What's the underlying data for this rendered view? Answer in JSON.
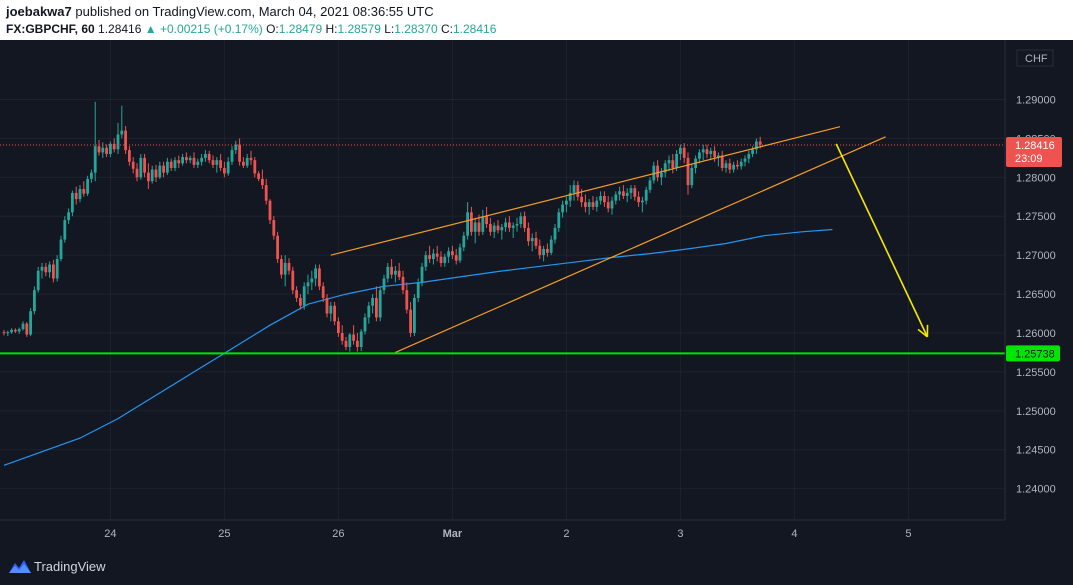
{
  "header": {
    "author": "joebakwa7",
    "published_text": "published on TradingView.com, March 04, 2021 08:36:55 UTC",
    "symbol": "FX:GBPCHF, 60",
    "last_price": "1.28416",
    "change": "+0.00215 (+0.17%)",
    "o_label": "O:",
    "o_value": "1.28479",
    "h_label": "H:",
    "h_value": "1.28579",
    "l_label": "L:",
    "l_value": "1.28370",
    "c_label": "C:",
    "c_value": "1.28416"
  },
  "footer": {
    "brand": "TradingView"
  },
  "colors": {
    "background": "#131722",
    "up": "#26a69a",
    "down": "#ef5350",
    "wedge": "#f59b23",
    "moving_average": "#2196f3",
    "support": "#00e600",
    "arrow": "#f5e800",
    "price_line": "#ef5350"
  },
  "chart_data": {
    "type": "candlestick",
    "symbol": "FX:GBPCHF",
    "interval": "60",
    "currency": "CHF",
    "ylim": [
      1.237,
      1.297
    ],
    "y_ticks": [
      "1.29000",
      "1.28500",
      "1.28000",
      "1.27500",
      "1.27000",
      "1.26500",
      "1.26000",
      "1.25500",
      "1.25000",
      "1.24500",
      "1.24000"
    ],
    "x_ticks": [
      {
        "label": "24",
        "index": 28
      },
      {
        "label": "25",
        "index": 58
      },
      {
        "label": "26",
        "index": 88
      },
      {
        "label": "Mar",
        "index": 118
      },
      {
        "label": "2",
        "index": 148
      },
      {
        "label": "3",
        "index": 178
      },
      {
        "label": "4",
        "index": 208
      },
      {
        "label": "5",
        "index": 238
      }
    ],
    "current_price": {
      "value": 1.28416,
      "label": "1.28416",
      "countdown": "23:09"
    },
    "support_level": {
      "value": 1.25738,
      "label": "1.25738"
    },
    "wedge_upper": {
      "from": [
        86,
        1.27
      ],
      "to": [
        220,
        1.2865
      ]
    },
    "wedge_lower": {
      "from": [
        103,
        1.2575
      ],
      "to": [
        232,
        1.2852
      ]
    },
    "moving_average": [
      [
        0,
        1.243
      ],
      [
        20,
        1.2465
      ],
      [
        30,
        1.249
      ],
      [
        40,
        1.252
      ],
      [
        50,
        1.255
      ],
      [
        60,
        1.258
      ],
      [
        70,
        1.261
      ],
      [
        80,
        1.2637
      ],
      [
        90,
        1.265
      ],
      [
        100,
        1.266
      ],
      [
        110,
        1.2665
      ],
      [
        120,
        1.2672
      ],
      [
        130,
        1.2679
      ],
      [
        140,
        1.2685
      ],
      [
        150,
        1.2691
      ],
      [
        160,
        1.2697
      ],
      [
        170,
        1.2702
      ],
      [
        180,
        1.2708
      ],
      [
        190,
        1.2715
      ],
      [
        200,
        1.2725
      ],
      [
        210,
        1.273
      ],
      [
        218,
        1.2733
      ]
    ],
    "projection_arrow": {
      "from": [
        219,
        1.2843
      ],
      "to": [
        243,
        1.2595
      ]
    },
    "candles": [
      [
        1.2601,
        1.2604,
        1.2597,
        1.26
      ],
      [
        1.26,
        1.2603,
        1.2596,
        1.2601
      ],
      [
        1.2601,
        1.2606,
        1.2599,
        1.2604
      ],
      [
        1.2604,
        1.2606,
        1.26,
        1.2602
      ],
      [
        1.2602,
        1.2607,
        1.2599,
        1.2605
      ],
      [
        1.2605,
        1.2615,
        1.2603,
        1.2612
      ],
      [
        1.2612,
        1.2614,
        1.2595,
        1.2598
      ],
      [
        1.2598,
        1.2632,
        1.2596,
        1.2628
      ],
      [
        1.2628,
        1.266,
        1.2624,
        1.2655
      ],
      [
        1.2655,
        1.2685,
        1.2652,
        1.268
      ],
      [
        1.268,
        1.269,
        1.267,
        1.2685
      ],
      [
        1.2685,
        1.269,
        1.2673,
        1.2678
      ],
      [
        1.2678,
        1.2692,
        1.2671,
        1.2688
      ],
      [
        1.2688,
        1.2694,
        1.2665,
        1.267
      ],
      [
        1.267,
        1.27,
        1.2666,
        1.2695
      ],
      [
        1.2695,
        1.2725,
        1.2692,
        1.272
      ],
      [
        1.272,
        1.275,
        1.2716,
        1.2745
      ],
      [
        1.2745,
        1.276,
        1.274,
        1.2755
      ],
      [
        1.2755,
        1.2783,
        1.275,
        1.278
      ],
      [
        1.278,
        1.2788,
        1.2765,
        1.2772
      ],
      [
        1.2772,
        1.279,
        1.2768,
        1.2785
      ],
      [
        1.2785,
        1.2795,
        1.2775,
        1.2779
      ],
      [
        1.2779,
        1.2802,
        1.2776,
        1.2798
      ],
      [
        1.2798,
        1.281,
        1.2793,
        1.2806
      ],
      [
        1.2806,
        1.2897,
        1.2795,
        1.284
      ],
      [
        1.284,
        1.2848,
        1.2828,
        1.2832
      ],
      [
        1.2832,
        1.2845,
        1.2825,
        1.2838
      ],
      [
        1.2838,
        1.2842,
        1.2826,
        1.283
      ],
      [
        1.283,
        1.2846,
        1.2826,
        1.2843
      ],
      [
        1.2843,
        1.285,
        1.2832,
        1.2836
      ],
      [
        1.2836,
        1.287,
        1.283,
        1.2855
      ],
      [
        1.2855,
        1.2892,
        1.285,
        1.286
      ],
      [
        1.286,
        1.2866,
        1.283,
        1.2835
      ],
      [
        1.2835,
        1.284,
        1.2815,
        1.282
      ],
      [
        1.282,
        1.2826,
        1.2805,
        1.2811
      ],
      [
        1.2811,
        1.2818,
        1.2795,
        1.28
      ],
      [
        1.28,
        1.283,
        1.2797,
        1.2825
      ],
      [
        1.2825,
        1.283,
        1.28,
        1.2806
      ],
      [
        1.2806,
        1.2818,
        1.2785,
        1.2795
      ],
      [
        1.2795,
        1.2815,
        1.2792,
        1.281
      ],
      [
        1.281,
        1.2816,
        1.2794,
        1.28
      ],
      [
        1.28,
        1.282,
        1.2798,
        1.2815
      ],
      [
        1.2815,
        1.282,
        1.28,
        1.2806
      ],
      [
        1.2806,
        1.2825,
        1.2803,
        1.282
      ],
      [
        1.282,
        1.2824,
        1.2808,
        1.2812
      ],
      [
        1.2812,
        1.2826,
        1.2808,
        1.2822
      ],
      [
        1.2822,
        1.2828,
        1.2812,
        1.2818
      ],
      [
        1.2818,
        1.283,
        1.2815,
        1.2826
      ],
      [
        1.2826,
        1.2832,
        1.2818,
        1.2822
      ],
      [
        1.2822,
        1.2828,
        1.2818,
        1.2825
      ],
      [
        1.2825,
        1.2832,
        1.2812,
        1.2816
      ],
      [
        1.2816,
        1.2824,
        1.2812,
        1.282
      ],
      [
        1.282,
        1.283,
        1.2815,
        1.2825
      ],
      [
        1.2825,
        1.2835,
        1.282,
        1.283
      ],
      [
        1.283,
        1.2834,
        1.2818,
        1.2822
      ],
      [
        1.2822,
        1.2828,
        1.2812,
        1.2816
      ],
      [
        1.2816,
        1.2826,
        1.2806,
        1.2822
      ],
      [
        1.2822,
        1.283,
        1.2808,
        1.2812
      ],
      [
        1.2812,
        1.282,
        1.28,
        1.2805
      ],
      [
        1.2805,
        1.2826,
        1.2802,
        1.282
      ],
      [
        1.282,
        1.284,
        1.2816,
        1.2835
      ],
      [
        1.2835,
        1.2847,
        1.283,
        1.2842
      ],
      [
        1.2842,
        1.285,
        1.2815,
        1.282
      ],
      [
        1.282,
        1.2826,
        1.2812,
        1.2815
      ],
      [
        1.2815,
        1.283,
        1.2812,
        1.2825
      ],
      [
        1.2825,
        1.2834,
        1.2816,
        1.2822
      ],
      [
        1.2822,
        1.2826,
        1.28,
        1.2805
      ],
      [
        1.2805,
        1.2808,
        1.2795,
        1.2798
      ],
      [
        1.2798,
        1.281,
        1.2785,
        1.279
      ],
      [
        1.279,
        1.2798,
        1.2765,
        1.277
      ],
      [
        1.277,
        1.2772,
        1.274,
        1.2745
      ],
      [
        1.2745,
        1.275,
        1.272,
        1.2725
      ],
      [
        1.2725,
        1.273,
        1.269,
        1.2695
      ],
      [
        1.2695,
        1.27,
        1.267,
        1.2675
      ],
      [
        1.2675,
        1.27,
        1.266,
        1.269
      ],
      [
        1.269,
        1.2696,
        1.2675,
        1.268
      ],
      [
        1.268,
        1.2685,
        1.265,
        1.2655
      ],
      [
        1.2655,
        1.266,
        1.264,
        1.2645
      ],
      [
        1.2645,
        1.265,
        1.263,
        1.2635
      ],
      [
        1.2635,
        1.2665,
        1.263,
        1.266
      ],
      [
        1.266,
        1.2675,
        1.265,
        1.2665
      ],
      [
        1.2665,
        1.268,
        1.2655,
        1.267
      ],
      [
        1.267,
        1.2688,
        1.266,
        1.2683
      ],
      [
        1.2683,
        1.2688,
        1.2655,
        1.266
      ],
      [
        1.266,
        1.2665,
        1.264,
        1.2645
      ],
      [
        1.2645,
        1.265,
        1.262,
        1.2625
      ],
      [
        1.2625,
        1.264,
        1.2615,
        1.2635
      ],
      [
        1.2635,
        1.264,
        1.261,
        1.2615
      ],
      [
        1.2615,
        1.262,
        1.2595,
        1.26
      ],
      [
        1.26,
        1.261,
        1.2585,
        1.259
      ],
      [
        1.259,
        1.2595,
        1.2578,
        1.2582
      ],
      [
        1.2582,
        1.26,
        1.2576,
        1.2598
      ],
      [
        1.2598,
        1.261,
        1.2585,
        1.259
      ],
      [
        1.259,
        1.26,
        1.2576,
        1.2582
      ],
      [
        1.2582,
        1.2605,
        1.2577,
        1.2602
      ],
      [
        1.2602,
        1.2625,
        1.2598,
        1.262
      ],
      [
        1.262,
        1.264,
        1.2612,
        1.2635
      ],
      [
        1.2635,
        1.265,
        1.2625,
        1.2645
      ],
      [
        1.2645,
        1.266,
        1.2615,
        1.262
      ],
      [
        1.262,
        1.266,
        1.2615,
        1.2655
      ],
      [
        1.2655,
        1.2675,
        1.265,
        1.267
      ],
      [
        1.267,
        1.269,
        1.2665,
        1.2685
      ],
      [
        1.2685,
        1.2695,
        1.267,
        1.2675
      ],
      [
        1.2675,
        1.2686,
        1.2665,
        1.268
      ],
      [
        1.268,
        1.269,
        1.2668,
        1.2672
      ],
      [
        1.2672,
        1.268,
        1.265,
        1.2655
      ],
      [
        1.2655,
        1.2665,
        1.2625,
        1.263
      ],
      [
        1.263,
        1.264,
        1.2595,
        1.26
      ],
      [
        1.26,
        1.265,
        1.2596,
        1.2645
      ],
      [
        1.2645,
        1.267,
        1.264,
        1.2665
      ],
      [
        1.2665,
        1.269,
        1.266,
        1.2685
      ],
      [
        1.2685,
        1.2705,
        1.268,
        1.27
      ],
      [
        1.27,
        1.2712,
        1.269,
        1.2695
      ],
      [
        1.2695,
        1.2708,
        1.2688,
        1.2702
      ],
      [
        1.2702,
        1.2712,
        1.2692,
        1.2698
      ],
      [
        1.2698,
        1.2705,
        1.2685,
        1.269
      ],
      [
        1.269,
        1.2702,
        1.2685,
        1.2698
      ],
      [
        1.2698,
        1.271,
        1.269,
        1.2705
      ],
      [
        1.2705,
        1.2712,
        1.2695,
        1.27
      ],
      [
        1.27,
        1.2708,
        1.2688,
        1.2693
      ],
      [
        1.2693,
        1.2715,
        1.269,
        1.271
      ],
      [
        1.271,
        1.273,
        1.2705,
        1.2725
      ],
      [
        1.2725,
        1.2768,
        1.272,
        1.2755
      ],
      [
        1.2755,
        1.2762,
        1.2725,
        1.273
      ],
      [
        1.273,
        1.2748,
        1.2715,
        1.2742
      ],
      [
        1.2742,
        1.2752,
        1.2725,
        1.273
      ],
      [
        1.273,
        1.2758,
        1.2726,
        1.275
      ],
      [
        1.275,
        1.2762,
        1.2735,
        1.274
      ],
      [
        1.274,
        1.2748,
        1.2725,
        1.273
      ],
      [
        1.273,
        1.2742,
        1.2722,
        1.2738
      ],
      [
        1.2738,
        1.2745,
        1.2728,
        1.2732
      ],
      [
        1.2732,
        1.274,
        1.272,
        1.2736
      ],
      [
        1.2736,
        1.2748,
        1.273,
        1.2742
      ],
      [
        1.2742,
        1.275,
        1.273,
        1.2735
      ],
      [
        1.2735,
        1.2742,
        1.2722,
        1.2738
      ],
      [
        1.2738,
        1.2748,
        1.273,
        1.274
      ],
      [
        1.274,
        1.2755,
        1.2735,
        1.275
      ],
      [
        1.275,
        1.2756,
        1.273,
        1.2735
      ],
      [
        1.2735,
        1.2742,
        1.2712,
        1.2718
      ],
      [
        1.2718,
        1.2728,
        1.2705,
        1.2722
      ],
      [
        1.2722,
        1.273,
        1.2708,
        1.2712
      ],
      [
        1.2712,
        1.272,
        1.2695,
        1.27
      ],
      [
        1.27,
        1.2712,
        1.2692,
        1.2708
      ],
      [
        1.2708,
        1.2715,
        1.2698,
        1.2703
      ],
      [
        1.2703,
        1.2725,
        1.27,
        1.272
      ],
      [
        1.272,
        1.274,
        1.2715,
        1.2735
      ],
      [
        1.2735,
        1.276,
        1.273,
        1.2755
      ],
      [
        1.2755,
        1.277,
        1.2748,
        1.2765
      ],
      [
        1.2765,
        1.2775,
        1.2755,
        1.277
      ],
      [
        1.277,
        1.279,
        1.2762,
        1.278
      ],
      [
        1.278,
        1.2796,
        1.277,
        1.279
      ],
      [
        1.279,
        1.2795,
        1.277,
        1.2775
      ],
      [
        1.2775,
        1.2785,
        1.2762,
        1.2768
      ],
      [
        1.2768,
        1.2778,
        1.2755,
        1.2762
      ],
      [
        1.2762,
        1.2772,
        1.2752,
        1.2768
      ],
      [
        1.2768,
        1.2776,
        1.2758,
        1.2762
      ],
      [
        1.2762,
        1.2775,
        1.2756,
        1.277
      ],
      [
        1.277,
        1.2782,
        1.2765,
        1.2776
      ],
      [
        1.2776,
        1.2782,
        1.2762,
        1.2768
      ],
      [
        1.2768,
        1.2776,
        1.2755,
        1.276
      ],
      [
        1.276,
        1.2775,
        1.2752,
        1.277
      ],
      [
        1.277,
        1.2782,
        1.2765,
        1.2778
      ],
      [
        1.2778,
        1.2788,
        1.277,
        1.2782
      ],
      [
        1.2782,
        1.279,
        1.2772,
        1.2776
      ],
      [
        1.2776,
        1.2786,
        1.2768,
        1.278
      ],
      [
        1.278,
        1.279,
        1.2772,
        1.2786
      ],
      [
        1.2786,
        1.279,
        1.277,
        1.2775
      ],
      [
        1.2775,
        1.2782,
        1.2762,
        1.2768
      ],
      [
        1.2768,
        1.2775,
        1.2755,
        1.277
      ],
      [
        1.277,
        1.2788,
        1.2765,
        1.2784
      ],
      [
        1.2784,
        1.28,
        1.278,
        1.2796
      ],
      [
        1.2796,
        1.282,
        1.2792,
        1.2815
      ],
      [
        1.2815,
        1.2822,
        1.2795,
        1.28
      ],
      [
        1.28,
        1.2812,
        1.279,
        1.2806
      ],
      [
        1.2806,
        1.2822,
        1.28,
        1.2818
      ],
      [
        1.2818,
        1.2828,
        1.2808,
        1.2822
      ],
      [
        1.2822,
        1.283,
        1.2805,
        1.2812
      ],
      [
        1.2812,
        1.2835,
        1.2808,
        1.283
      ],
      [
        1.283,
        1.2842,
        1.2822,
        1.2838
      ],
      [
        1.2838,
        1.2844,
        1.2818,
        1.2825
      ],
      [
        1.2825,
        1.2832,
        1.2778,
        1.279
      ],
      [
        1.279,
        1.2818,
        1.2786,
        1.2812
      ],
      [
        1.2812,
        1.2828,
        1.2805,
        1.2824
      ],
      [
        1.2824,
        1.2836,
        1.2818,
        1.2832
      ],
      [
        1.2832,
        1.2842,
        1.2822,
        1.2836
      ],
      [
        1.2836,
        1.2842,
        1.2825,
        1.283
      ],
      [
        1.283,
        1.2838,
        1.2822,
        1.2834
      ],
      [
        1.2834,
        1.284,
        1.282,
        1.2826
      ],
      [
        1.2826,
        1.2832,
        1.2814,
        1.2828
      ],
      [
        1.2828,
        1.2834,
        1.2808,
        1.2812
      ],
      [
        1.2812,
        1.2822,
        1.2806,
        1.2818
      ],
      [
        1.2818,
        1.2824,
        1.2805,
        1.281
      ],
      [
        1.281,
        1.282,
        1.2806,
        1.2816
      ],
      [
        1.2816,
        1.2822,
        1.281,
        1.2814
      ],
      [
        1.2814,
        1.2824,
        1.281,
        1.282
      ],
      [
        1.282,
        1.2828,
        1.2814,
        1.2824
      ],
      [
        1.2824,
        1.2834,
        1.2818,
        1.283
      ],
      [
        1.283,
        1.284,
        1.2826,
        1.2836
      ],
      [
        1.2836,
        1.285,
        1.283,
        1.2846
      ],
      [
        1.2846,
        1.2852,
        1.2837,
        1.2842
      ]
    ]
  }
}
